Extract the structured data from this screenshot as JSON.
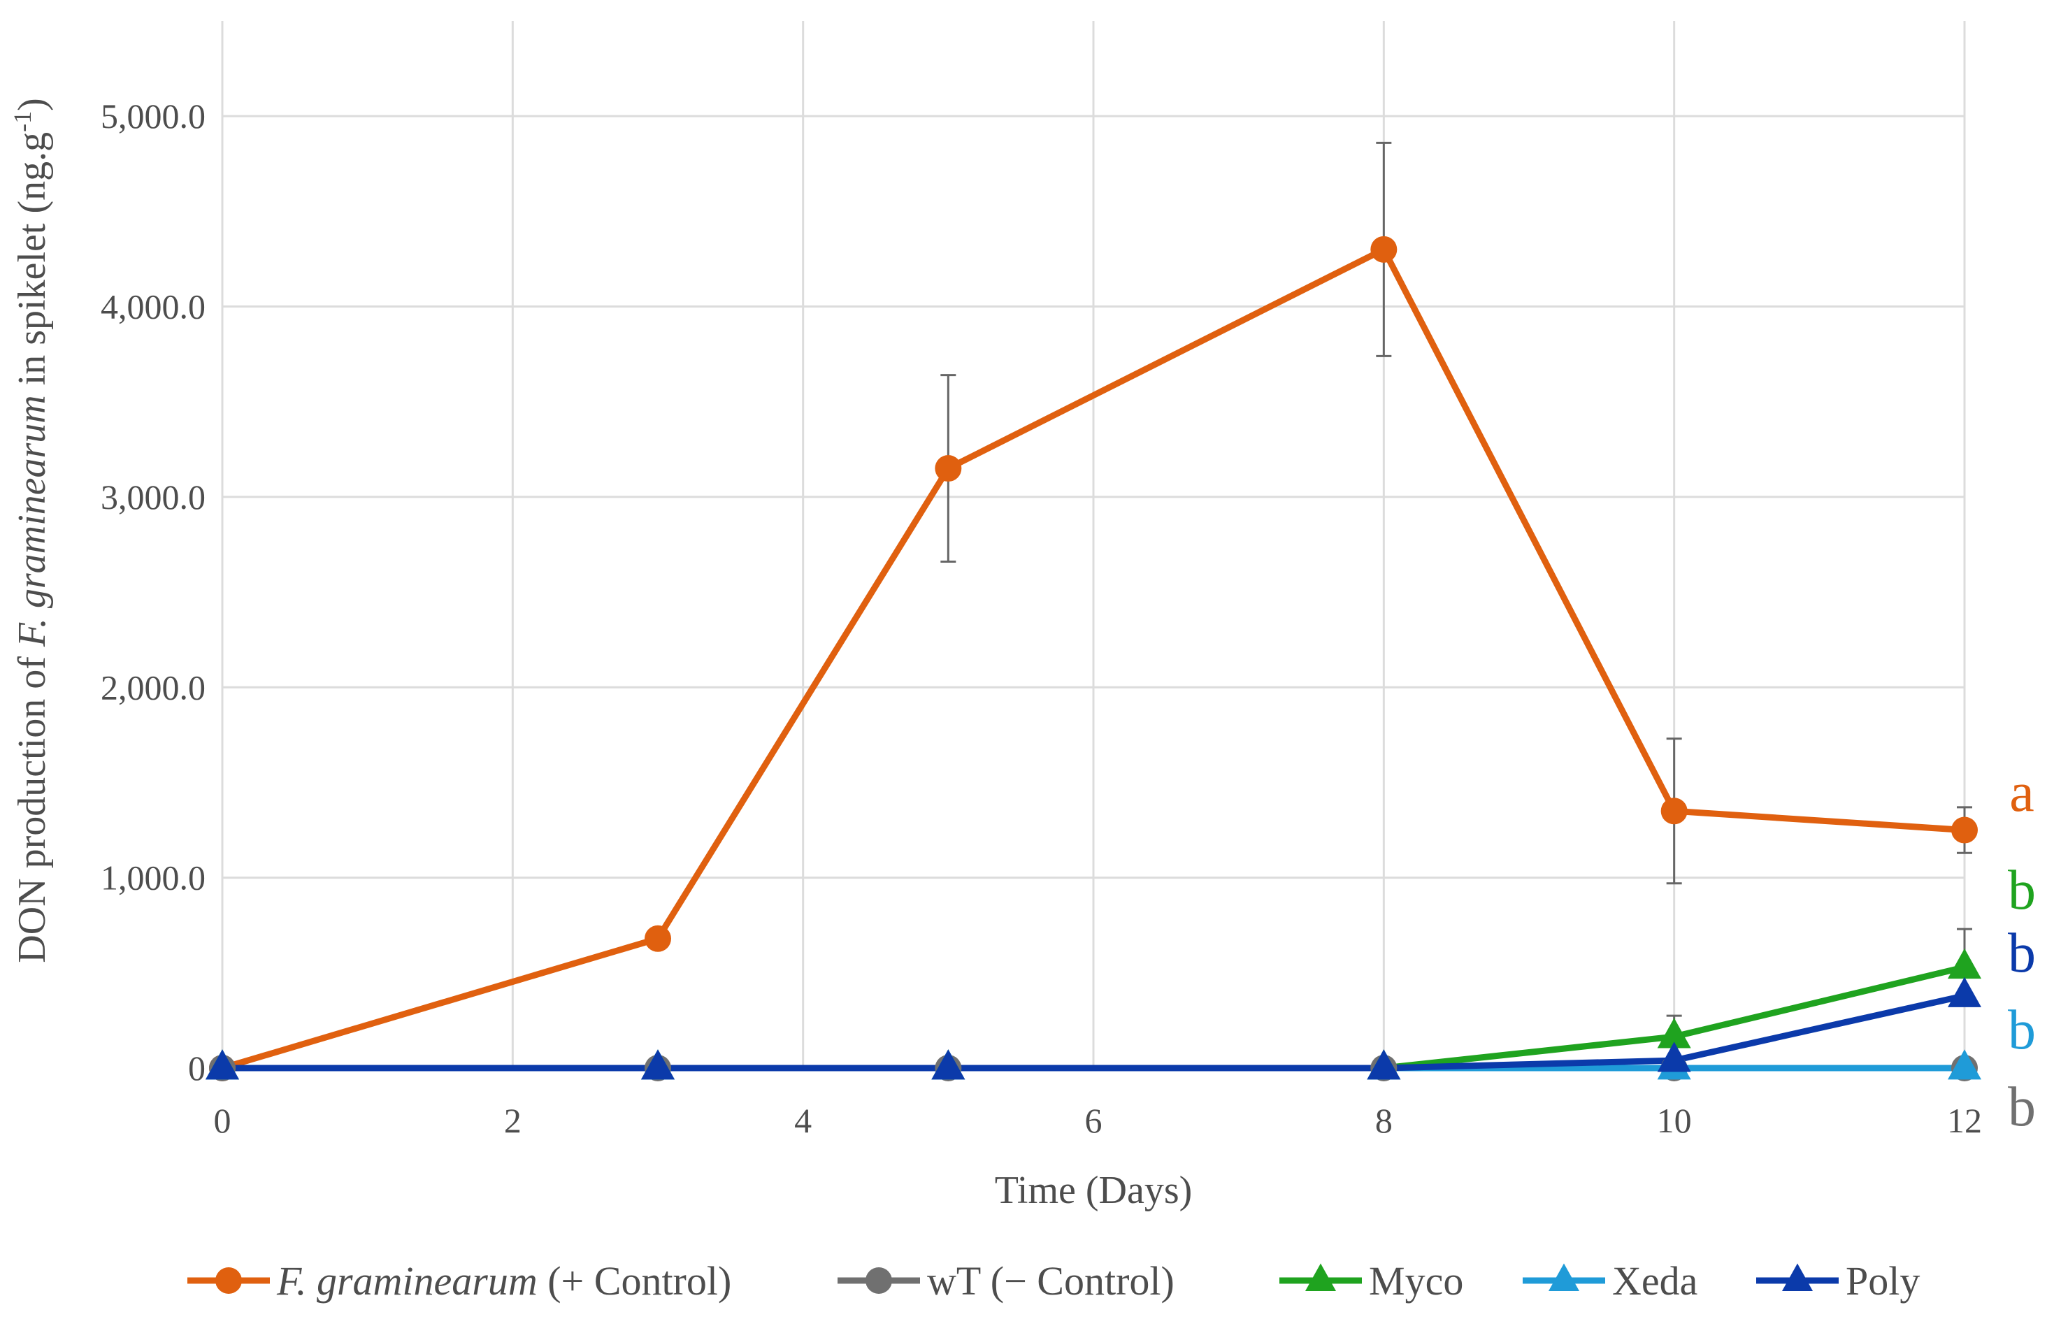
{
  "chart_data": {
    "type": "line",
    "x": [
      0,
      3,
      5,
      8,
      10,
      12
    ],
    "xlabel": "Time (Days)",
    "ylabel": {
      "part1": "DON production of ",
      "part2_italic": "F. graminearum",
      "part3": " in spikelet (ng.g",
      "superscript": "-1",
      "part4": ")"
    },
    "xlim": [
      0,
      12
    ],
    "ylim": [
      0,
      5500
    ],
    "xticks": [
      0,
      2,
      4,
      6,
      8,
      10,
      12
    ],
    "xtick_labels": [
      "0",
      "2",
      "4",
      "6",
      "8",
      "10",
      "12"
    ],
    "yticks": [
      0,
      1000,
      2000,
      3000,
      4000,
      5000
    ],
    "ytick_labels": [
      "0",
      "1,000.0",
      "2,000.0",
      "3,000.0",
      "4,000.0",
      "5,000.0"
    ],
    "grid": true,
    "legend_position": "bottom",
    "series": [
      {
        "key": "fg",
        "name_italic": "F. graminearum",
        "name_rest": " (+ Control)",
        "color": "#e0600f",
        "marker": "circle",
        "values": [
          0,
          680,
          3150,
          4300,
          1350,
          1250
        ],
        "errors": [
          0,
          0,
          490,
          560,
          380,
          120
        ],
        "significance": "a"
      },
      {
        "key": "wt",
        "name": "wT (− Control)",
        "color": "#707070",
        "marker": "circle",
        "values": [
          0,
          0,
          0,
          0,
          0,
          0
        ],
        "errors": [
          0,
          0,
          0,
          0,
          0,
          0
        ],
        "significance": "b"
      },
      {
        "key": "myco",
        "name": "Myco",
        "color": "#1fa31f",
        "marker": "triangle",
        "values": [
          0,
          0,
          0,
          0,
          165,
          530
        ],
        "errors": [
          0,
          0,
          0,
          0,
          110,
          200
        ],
        "significance": "b"
      },
      {
        "key": "xeda",
        "name": "Xeda",
        "color": "#1f9bd8",
        "marker": "triangle",
        "values": [
          0,
          0,
          0,
          0,
          0,
          0
        ],
        "errors": [
          0,
          0,
          0,
          0,
          0,
          0
        ],
        "significance": "b"
      },
      {
        "key": "poly",
        "name": "Poly",
        "color": "#0b3aaa",
        "marker": "triangle",
        "values": [
          0,
          0,
          0,
          0,
          40,
          380
        ],
        "errors": [
          0,
          0,
          0,
          0,
          0,
          0
        ],
        "significance": "b"
      }
    ],
    "error_bar_color": "#666666"
  }
}
